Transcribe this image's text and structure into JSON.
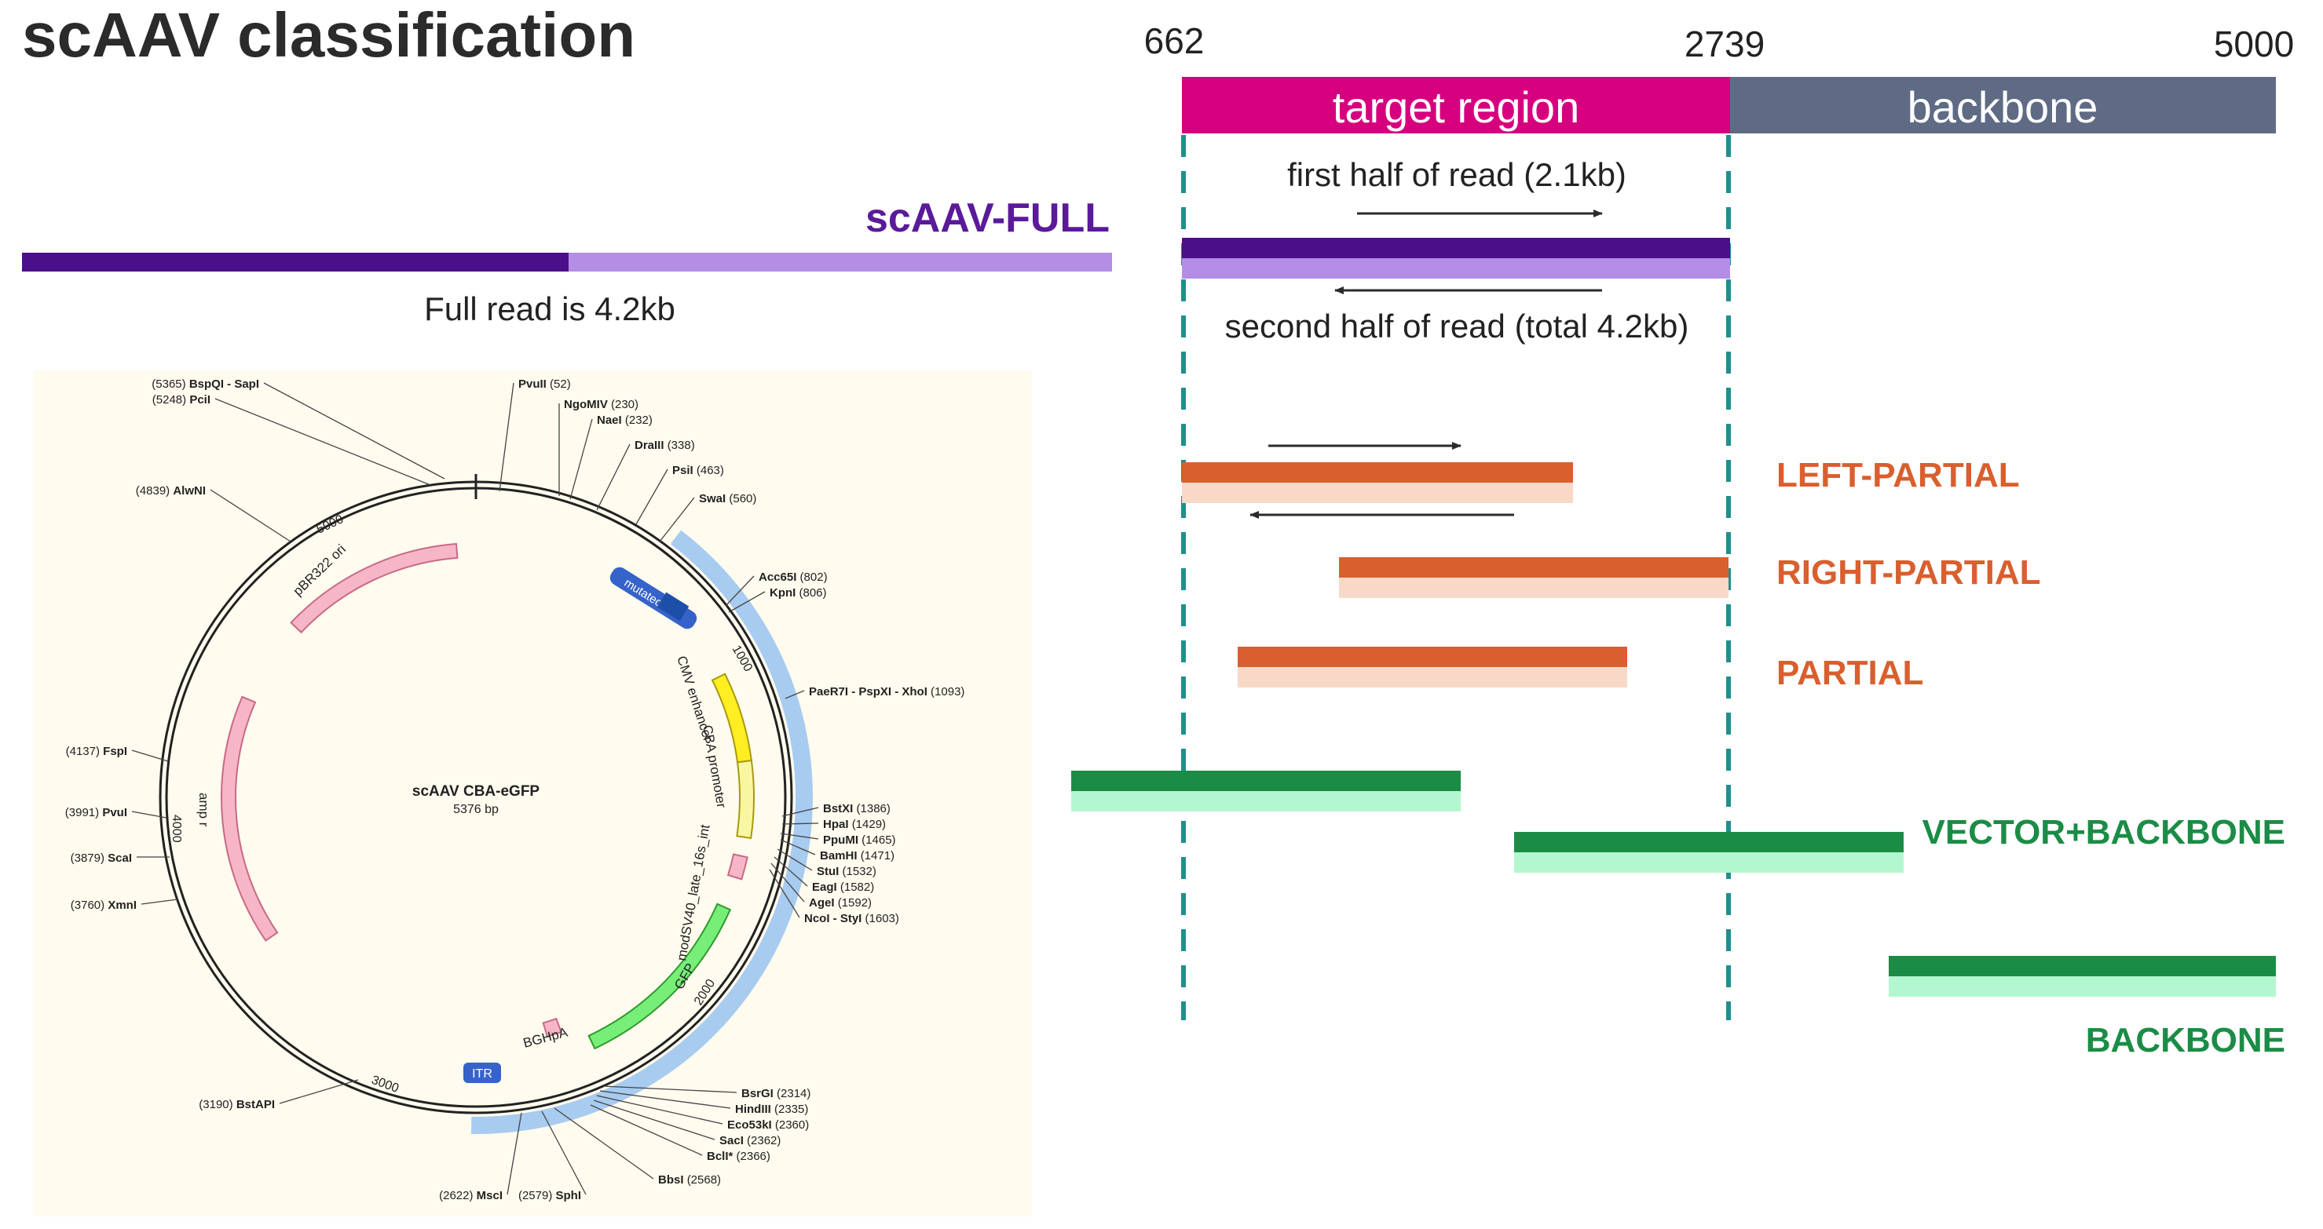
{
  "title": "scAAV classification",
  "coords": {
    "start": "662",
    "mid": "2739",
    "end": "5000"
  },
  "regions": {
    "target": "target region",
    "backbone": "backbone"
  },
  "full_read": {
    "label": "scAAV-FULL",
    "caption": "Full read is 4.2kb",
    "first_half": "first half of read (2.1kb)",
    "second_half": "second half of read (total 4.2kb)"
  },
  "categories": {
    "left_partial": "LEFT-PARTIAL",
    "right_partial": "RIGHT-PARTIAL",
    "partial": "PARTIAL",
    "vector_backbone": "VECTOR+BACKBONE",
    "backbone": "BACKBONE"
  },
  "colors": {
    "title": "#2b2b2b",
    "target": "#d6007f",
    "backbone": "#5f6b85",
    "full_dark": "#4b0f89",
    "full_light": "#b48de4",
    "partial_dark": "#d95f2e",
    "partial_light": "#f8d9c8",
    "vector_dark": "#1b8c46",
    "vector_light": "#b3f7d0",
    "dash": "#1f8f8c",
    "full_label": "#5a1a99"
  },
  "plasmid": {
    "name": "scAAV CBA-eGFP",
    "size": "5376 bp",
    "ticks": [
      "1000",
      "2000",
      "3000",
      "4000",
      "5000"
    ],
    "features": [
      "mutated ITR",
      "CMV enhancer",
      "CBA promoter",
      "modSV40_late_16s_int",
      "GFP",
      "BGHpA",
      "ITR",
      "amp r",
      "pBR322 ori"
    ],
    "sites": [
      {
        "name": "BspQI - SapI",
        "pos": "(5365)"
      },
      {
        "name": "PciI",
        "pos": "(5248)"
      },
      {
        "name": "PvuII",
        "pos": "(52)"
      },
      {
        "name": "NgoMIV",
        "pos": "(230)"
      },
      {
        "name": "NaeI",
        "pos": "(232)"
      },
      {
        "name": "DraIII",
        "pos": "(338)"
      },
      {
        "name": "PsiI",
        "pos": "(463)"
      },
      {
        "name": "SwaI",
        "pos": "(560)"
      },
      {
        "name": "AlwNI",
        "pos": "(4839)"
      },
      {
        "name": "Acc65I",
        "pos": "(802)"
      },
      {
        "name": "KpnI",
        "pos": "(806)"
      },
      {
        "name": "PaeR7I - PspXI - XhoI",
        "pos": "(1093)"
      },
      {
        "name": "FspI",
        "pos": "(4137)"
      },
      {
        "name": "PvuI",
        "pos": "(3991)"
      },
      {
        "name": "ScaI",
        "pos": "(3879)"
      },
      {
        "name": "XmnI",
        "pos": "(3760)"
      },
      {
        "name": "BstXI",
        "pos": "(1386)"
      },
      {
        "name": "HpaI",
        "pos": "(1429)"
      },
      {
        "name": "PpuMI",
        "pos": "(1465)"
      },
      {
        "name": "BamHI",
        "pos": "(1471)"
      },
      {
        "name": "StuI",
        "pos": "(1532)"
      },
      {
        "name": "EagI",
        "pos": "(1582)"
      },
      {
        "name": "AgeI",
        "pos": "(1592)"
      },
      {
        "name": "NcoI - StyI",
        "pos": "(1603)"
      },
      {
        "name": "BstAPI",
        "pos": "(3190)"
      },
      {
        "name": "BsrGI",
        "pos": "(2314)"
      },
      {
        "name": "HindIII",
        "pos": "(2335)"
      },
      {
        "name": "Eco53kI",
        "pos": "(2360)"
      },
      {
        "name": "SacI",
        "pos": "(2362)"
      },
      {
        "name": "BclI*",
        "pos": "(2366)"
      },
      {
        "name": "BbsI",
        "pos": "(2568)"
      },
      {
        "name": "MscI",
        "pos": "(2622)"
      },
      {
        "name": "SphI",
        "pos": "(2579)"
      }
    ]
  }
}
